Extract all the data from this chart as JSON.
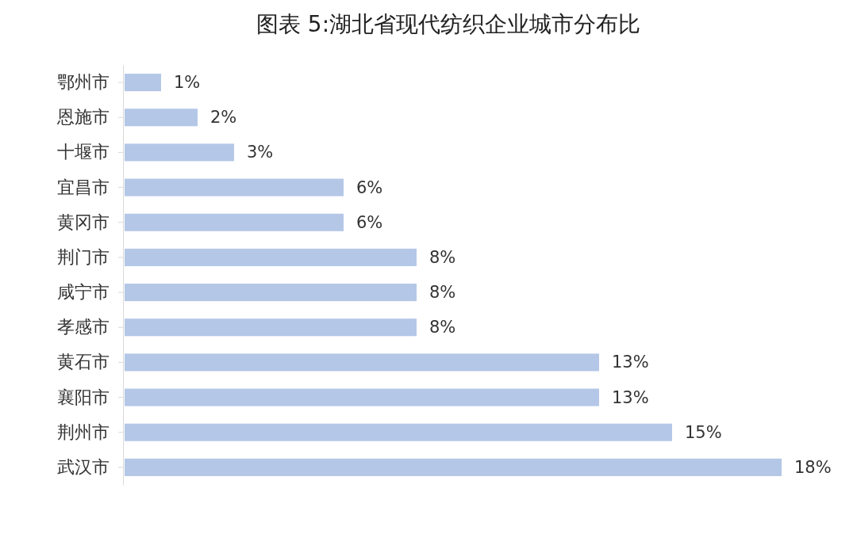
{
  "chart_data": {
    "type": "bar",
    "orientation": "horizontal",
    "title": "图表 5:湖北省现代纺织企业城市分布比",
    "categories": [
      "鄂州市",
      "恩施市",
      "十堰市",
      "宜昌市",
      "黄冈市",
      "荆门市",
      "咸宁市",
      "孝感市",
      "黄石市",
      "襄阳市",
      "荆州市",
      "武汉市"
    ],
    "values": [
      1,
      2,
      3,
      6,
      6,
      8,
      8,
      8,
      13,
      13,
      15,
      18
    ],
    "value_labels": [
      "1%",
      "2%",
      "3%",
      "6%",
      "6%",
      "8%",
      "8%",
      "8%",
      "13%",
      "13%",
      "15%",
      "18%"
    ],
    "color": "#b4c7e7"
  }
}
